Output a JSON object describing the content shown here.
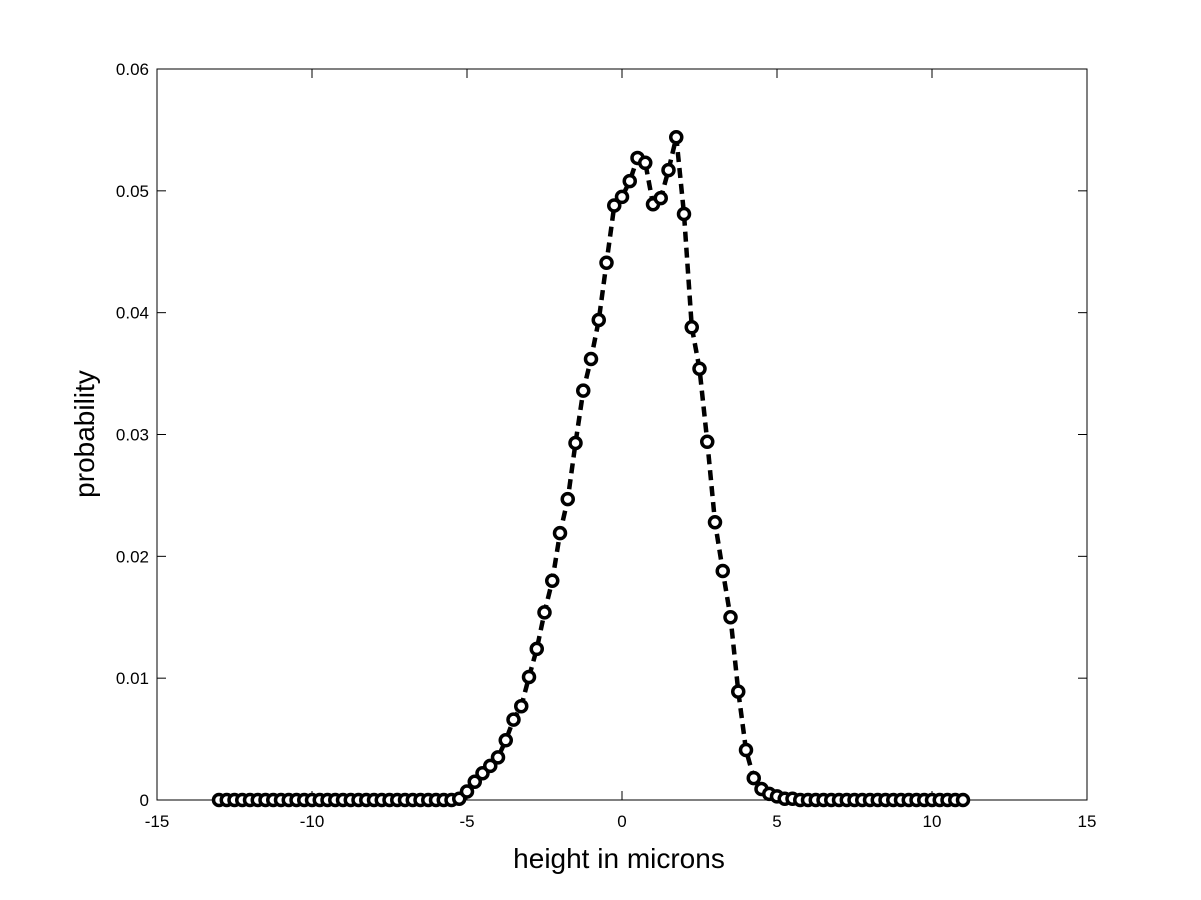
{
  "chart_data": {
    "type": "line",
    "title": "",
    "xlabel": "height in microns",
    "ylabel": "probability",
    "xlim": [
      -15,
      15
    ],
    "ylim": [
      0,
      0.06
    ],
    "xticks": [
      -15,
      -10,
      -5,
      0,
      5,
      10,
      15
    ],
    "xtick_labels": [
      "-15",
      "-10",
      "-5",
      "0",
      "5",
      "10",
      "15"
    ],
    "yticks": [
      0,
      0.01,
      0.02,
      0.03,
      0.04,
      0.05,
      0.06
    ],
    "ytick_labels": [
      "0",
      "0.01",
      "0.02",
      "0.03",
      "0.04",
      "0.05",
      "0.06"
    ],
    "grid": false,
    "line_style": "dashed",
    "marker": "circle",
    "line_color": "#000000",
    "series": [
      {
        "x": [
          -13.0,
          -12.75,
          -12.5,
          -12.25,
          -12.0,
          -11.75,
          -11.5,
          -11.25,
          -11.0,
          -10.75,
          -10.5,
          -10.25,
          -10.0,
          -9.75,
          -9.5,
          -9.25,
          -9.0,
          -8.75,
          -8.5,
          -8.25,
          -8.0,
          -7.75,
          -7.5,
          -7.25,
          -7.0,
          -6.75,
          -6.5,
          -6.25,
          -6.0,
          -5.75,
          -5.5,
          -5.25,
          -5.0,
          -4.75,
          -4.5,
          -4.25,
          -4.0,
          -3.75,
          -3.5,
          -3.25,
          -3.0,
          -2.75,
          -2.5,
          -2.25,
          -2.0,
          -1.75,
          -1.5,
          -1.25,
          -1.0,
          -0.75,
          -0.5,
          -0.25,
          0.0,
          0.25,
          0.5,
          0.75,
          1.0,
          1.25,
          1.5,
          1.75,
          2.0,
          2.25,
          2.5,
          2.75,
          3.0,
          3.25,
          3.5,
          3.75,
          4.0,
          4.25,
          4.5,
          4.75,
          5.0,
          5.25,
          5.5,
          5.75,
          6.0,
          6.25,
          6.5,
          6.75,
          7.0,
          7.25,
          7.5,
          7.75,
          8.0,
          8.25,
          8.5,
          8.75,
          9.0,
          9.25,
          9.5,
          9.75,
          10.0,
          10.25,
          10.5,
          10.75,
          11.0
        ],
        "y": [
          0.0,
          0.0,
          0.0,
          0.0,
          0.0,
          0.0,
          0.0,
          0.0,
          0.0,
          0.0,
          0.0,
          0.0,
          0.0,
          0.0,
          0.0,
          0.0,
          0.0,
          0.0,
          0.0,
          0.0,
          0.0,
          0.0,
          0.0,
          0.0,
          0.0,
          0.0,
          0.0,
          0.0,
          0.0,
          0.0,
          0.0,
          0.0001,
          0.0007,
          0.0015,
          0.0022,
          0.0028,
          0.0035,
          0.0049,
          0.0066,
          0.0077,
          0.0101,
          0.0124,
          0.0154,
          0.018,
          0.0219,
          0.0247,
          0.0293,
          0.0336,
          0.0362,
          0.0394,
          0.0441,
          0.0488,
          0.0495,
          0.0508,
          0.0527,
          0.0523,
          0.0489,
          0.0494,
          0.0517,
          0.0544,
          0.0481,
          0.0388,
          0.0354,
          0.0294,
          0.0228,
          0.0188,
          0.015,
          0.0089,
          0.0041,
          0.0018,
          0.0009,
          0.0005,
          0.0003,
          0.0001,
          0.0001,
          0.0,
          0.0,
          0.0,
          0.0,
          0.0,
          0.0,
          0.0,
          0.0,
          0.0,
          0.0,
          0.0,
          0.0,
          0.0,
          0.0,
          0.0,
          0.0,
          0.0,
          0.0,
          0.0,
          0.0,
          0.0,
          0.0
        ]
      }
    ]
  }
}
